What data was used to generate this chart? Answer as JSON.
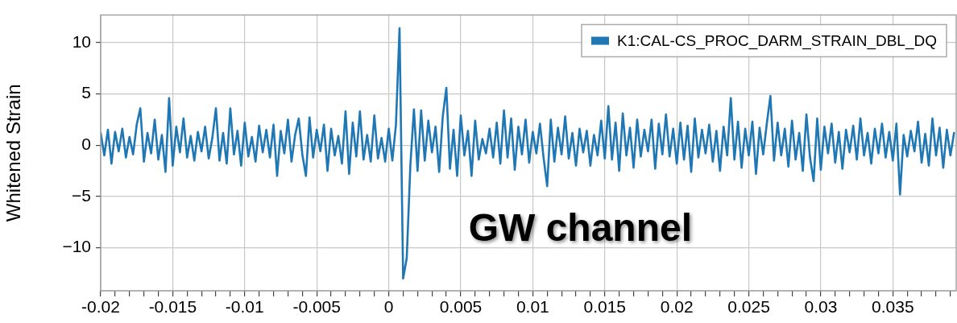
{
  "chart_data": {
    "type": "line",
    "ylabel": "Whitened Strain",
    "annotations": [
      "GW channel"
    ],
    "xlim": [
      -0.02,
      0.0394
    ],
    "ylim": [
      -14.2,
      12.7
    ],
    "xticks": [
      -0.02,
      {
        "value": -0.019,
        "label": null
      },
      {
        "value": -0.018,
        "label": null
      },
      {
        "value": -0.017,
        "label": null
      },
      {
        "value": -0.016,
        "label": null
      },
      -0.015,
      {
        "value": -0.014,
        "label": null
      },
      {
        "value": -0.013,
        "label": null
      },
      {
        "value": -0.012,
        "label": null
      },
      {
        "value": -0.011,
        "label": null
      },
      -0.01,
      {
        "value": -0.009,
        "label": null
      },
      {
        "value": -0.008,
        "label": null
      },
      {
        "value": -0.007,
        "label": null
      },
      {
        "value": -0.006,
        "label": null
      },
      -0.005,
      {
        "value": -0.004,
        "label": null
      },
      {
        "value": -0.003,
        "label": null
      },
      {
        "value": -0.002,
        "label": null
      },
      {
        "value": -0.001,
        "label": null
      },
      0,
      {
        "value": 0.001,
        "label": null
      },
      {
        "value": 0.002,
        "label": null
      },
      {
        "value": 0.003,
        "label": null
      },
      {
        "value": 0.004,
        "label": null
      },
      0.005,
      {
        "value": 0.006,
        "label": null
      },
      {
        "value": 0.007,
        "label": null
      },
      {
        "value": 0.008,
        "label": null
      },
      {
        "value": 0.009,
        "label": null
      },
      0.01,
      {
        "value": 0.011,
        "label": null
      },
      {
        "value": 0.012,
        "label": null
      },
      {
        "value": 0.013,
        "label": null
      },
      {
        "value": 0.014,
        "label": null
      },
      0.015,
      {
        "value": 0.016,
        "label": null
      },
      {
        "value": 0.017,
        "label": null
      },
      {
        "value": 0.018,
        "label": null
      },
      {
        "value": 0.019,
        "label": null
      },
      0.02,
      {
        "value": 0.021,
        "label": null
      },
      {
        "value": 0.022,
        "label": null
      },
      {
        "value": 0.023,
        "label": null
      },
      {
        "value": 0.024,
        "label": null
      },
      0.025,
      {
        "value": 0.026,
        "label": null
      },
      {
        "value": 0.027,
        "label": null
      },
      {
        "value": 0.028,
        "label": null
      },
      {
        "value": 0.029,
        "label": null
      },
      0.03,
      {
        "value": 0.031,
        "label": null
      },
      {
        "value": 0.032,
        "label": null
      },
      {
        "value": 0.033,
        "label": null
      },
      {
        "value": 0.034,
        "label": null
      },
      0.035,
      {
        "value": 0.036,
        "label": null
      },
      {
        "value": 0.037,
        "label": null
      },
      {
        "value": 0.038,
        "label": null
      },
      {
        "value": 0.039,
        "label": null
      }
    ],
    "yticks": [
      {
        "value": -10,
        "label": "−10"
      },
      {
        "value": -5,
        "label": "−5"
      },
      0,
      5,
      10
    ],
    "grid": true,
    "legend": "top right",
    "x": [
      -0.02,
      -0.01975,
      -0.0195,
      -0.01925,
      -0.019,
      -0.01875,
      -0.0185,
      -0.01825,
      -0.018,
      -0.01775,
      -0.0175,
      -0.01725,
      -0.017,
      -0.01675,
      -0.0165,
      -0.01625,
      -0.016,
      -0.01575,
      -0.0155,
      -0.01525,
      -0.015,
      -0.01475,
      -0.0145,
      -0.01425,
      -0.014,
      -0.01375,
      -0.0135,
      -0.01325,
      -0.013,
      -0.01275,
      -0.0125,
      -0.01225,
      -0.012,
      -0.01175,
      -0.0115,
      -0.01125,
      -0.011,
      -0.01075,
      -0.0105,
      -0.01025,
      -0.01,
      -0.00975,
      -0.0095,
      -0.00925,
      -0.009,
      -0.00875,
      -0.0085,
      -0.00825,
      -0.008,
      -0.00775,
      -0.0075,
      -0.00725,
      -0.007,
      -0.00675,
      -0.0065,
      -0.00625,
      -0.006,
      -0.00575,
      -0.0055,
      -0.00525,
      -0.005,
      -0.00475,
      -0.0045,
      -0.00425,
      -0.004,
      -0.00375,
      -0.0035,
      -0.00325,
      -0.003,
      -0.00275,
      -0.0025,
      -0.00225,
      -0.002,
      -0.00175,
      -0.0015,
      -0.00125,
      -0.001,
      -0.00075,
      -0.0005,
      -0.00025,
      0,
      0.00025,
      0.0005,
      0.00075,
      0.001,
      0.00125,
      0.0015,
      0.00175,
      0.002,
      0.00225,
      0.0025,
      0.00275,
      0.003,
      0.00325,
      0.0035,
      0.00375,
      0.004,
      0.00425,
      0.0045,
      0.00475,
      0.005,
      0.00525,
      0.0055,
      0.00575,
      0.006,
      0.00625,
      0.0065,
      0.00675,
      0.007,
      0.00725,
      0.0075,
      0.00775,
      0.008,
      0.00825,
      0.0085,
      0.00875,
      0.009,
      0.00925,
      0.0095,
      0.00975,
      0.01,
      0.01025,
      0.0105,
      0.01075,
      0.011,
      0.01125,
      0.0115,
      0.01175,
      0.012,
      0.01225,
      0.0125,
      0.01275,
      0.013,
      0.01325,
      0.0135,
      0.01375,
      0.014,
      0.01425,
      0.0145,
      0.01475,
      0.015,
      0.01525,
      0.0155,
      0.01575,
      0.016,
      0.01625,
      0.0165,
      0.01675,
      0.017,
      0.01725,
      0.0175,
      0.01775,
      0.018,
      0.01825,
      0.0185,
      0.01875,
      0.019,
      0.01925,
      0.0195,
      0.01975,
      0.02,
      0.02025,
      0.0205,
      0.02075,
      0.021,
      0.02125,
      0.0215,
      0.02175,
      0.022,
      0.02225,
      0.0225,
      0.02275,
      0.023,
      0.02325,
      0.0235,
      0.02375,
      0.024,
      0.02425,
      0.0245,
      0.02475,
      0.025,
      0.02525,
      0.0255,
      0.02575,
      0.026,
      0.02625,
      0.0265,
      0.02675,
      0.027,
      0.02725,
      0.0275,
      0.02775,
      0.028,
      0.02825,
      0.0285,
      0.02875,
      0.029,
      0.02925,
      0.0295,
      0.02975,
      0.03,
      0.03025,
      0.0305,
      0.03075,
      0.031,
      0.03125,
      0.0315,
      0.03175,
      0.032,
      0.03225,
      0.0325,
      0.03275,
      0.033,
      0.03325,
      0.0335,
      0.03375,
      0.034,
      0.03425,
      0.0345,
      0.03475,
      0.035,
      0.03525,
      0.0355,
      0.03575,
      0.036,
      0.03625,
      0.0365,
      0.03675,
      0.037,
      0.03725,
      0.0375,
      0.03775,
      0.038,
      0.03825,
      0.0385,
      0.03875,
      0.039,
      0.03925
    ],
    "series": [
      {
        "name": "K1:CAL-CS_PROC_DARM_STRAIN_DBL_DQ",
        "color": "#1f77b4",
        "values": [
          1.2,
          -1.0,
          1.5,
          -1.8,
          1.3,
          -0.6,
          1.6,
          -1.2,
          0.8,
          -0.9,
          2.0,
          3.6,
          -1.6,
          1.2,
          -0.8,
          2.5,
          -1.4,
          1.0,
          -2.6,
          4.6,
          -2.0,
          1.8,
          -0.7,
          2.6,
          -1.2,
          0.9,
          -1.5,
          1.3,
          -0.6,
          1.8,
          -1.3,
          0.7,
          3.6,
          -1.5,
          1.2,
          -1.8,
          3.6,
          -0.9,
          1.4,
          -2.0,
          2.2,
          -1.1,
          0.8,
          -1.6,
          1.9,
          -0.7,
          1.5,
          -1.2,
          2.0,
          -3.0,
          1.4,
          -0.8,
          2.5,
          -1.6,
          1.0,
          2.6,
          -0.9,
          -3.0,
          2.7,
          -1.2,
          1.5,
          -0.6,
          2.0,
          -2.5,
          1.6,
          -1.0,
          0.9,
          -1.8,
          3.3,
          -2.8,
          2.2,
          -1.1,
          3.3,
          -1.4,
          1.0,
          -1.6,
          2.9,
          -1.3,
          0.7,
          -1.6,
          1.6,
          -1.5,
          2.0,
          11.4,
          -13.0,
          -11.0,
          -2.0,
          3.5,
          -2.5,
          3.4,
          -1.5,
          2.4,
          -0.7,
          1.8,
          -2.6,
          2.8,
          5.6,
          -2.3,
          1.5,
          -3.0,
          2.9,
          -1.0,
          1.4,
          -3.0,
          2.4,
          -1.4,
          0.6,
          -0.8,
          1.6,
          -1.2,
          2.2,
          -1.8,
          3.4,
          -1.2,
          2.6,
          -2.4,
          1.8,
          -0.9,
          2.5,
          -1.7,
          1.3,
          -0.8,
          2.1,
          -1.2,
          -4.0,
          2.5,
          -1.6,
          1.7,
          -0.9,
          2.8,
          -1.3,
          1.2,
          -2.0,
          1.6,
          -0.7,
          1.4,
          -2.0,
          1.0,
          -1.0,
          2.4,
          -1.3,
          3.8,
          -1.4,
          2.2,
          -2.5,
          3.1,
          -1.0,
          1.7,
          -2.2,
          2.5,
          -1.1,
          1.5,
          -0.6,
          2.5,
          -2.3,
          2.1,
          -0.9,
          3.0,
          -1.1,
          1.6,
          -1.8,
          2.2,
          -1.4,
          1.9,
          -2.6,
          2.6,
          -1.2,
          1.5,
          -0.8,
          2.0,
          -1.6,
          1.4,
          -2.5,
          1.8,
          -1.0,
          4.6,
          -1.4,
          2.3,
          -2.2,
          1.6,
          -1.0,
          2.3,
          -2.8,
          1.7,
          -0.9,
          2.1,
          4.8,
          -1.5,
          2.2,
          -1.0,
          1.6,
          -2.1,
          2.4,
          -1.4,
          1.2,
          -2.5,
          3.0,
          -1.2,
          -3.5,
          2.6,
          -2.4,
          1.8,
          -0.8,
          2.1,
          -1.7,
          1.3,
          -2.3,
          1.5,
          -0.7,
          1.9,
          -1.4,
          2.6,
          -1.0,
          1.2,
          -1.8,
          1.6,
          -0.8,
          2.1,
          -1.2,
          1.3,
          -1.5,
          2.1,
          -4.8,
          1.0,
          -1.1,
          1.4,
          -0.6,
          2.3,
          -1.7,
          1.1,
          -2.0,
          2.6,
          -1.0,
          1.7,
          -2.2,
          1.5,
          -1.0,
          1.2
        ]
      }
    ]
  }
}
